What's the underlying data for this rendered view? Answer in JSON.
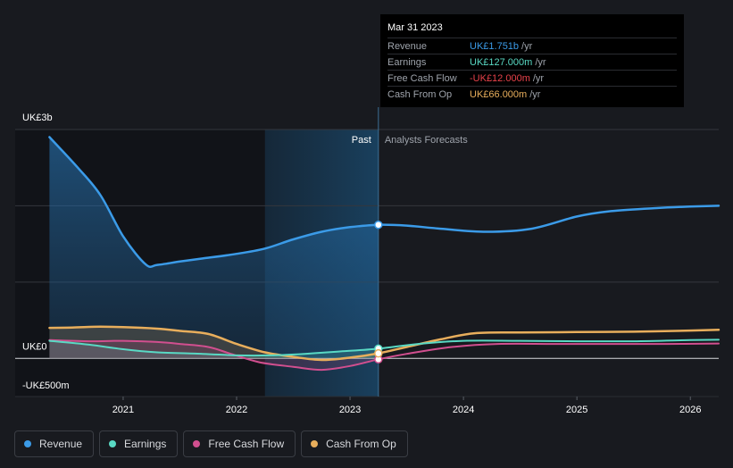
{
  "chart_data": {
    "type": "line",
    "x_domain": [
      2020.3,
      2026.25
    ],
    "y_domain": [
      -500,
      3000
    ],
    "y_tick_labels": [
      {
        "value": 3000,
        "label": "UK£3b"
      },
      {
        "value": 0,
        "label": "UK£0"
      },
      {
        "value": -500,
        "label": "-UK£500m"
      }
    ],
    "x_ticks": [
      {
        "value": 2021,
        "label": "2021"
      },
      {
        "value": 2022,
        "label": "2022"
      },
      {
        "value": 2023,
        "label": "2023"
      },
      {
        "value": 2024,
        "label": "2024"
      },
      {
        "value": 2025,
        "label": "2025"
      },
      {
        "value": 2026,
        "label": "2026"
      }
    ],
    "gridlines": [
      3000,
      2000,
      1000,
      0
    ],
    "past_label": "Past",
    "forecast_label": "Analysts Forecasts",
    "divider_x": 2023.25,
    "highlight_start_x": 2022.25,
    "series": [
      {
        "name": "Revenue",
        "color": "#3b9be8",
        "fill": true,
        "width": 2.5,
        "points": [
          [
            2020.35,
            2900
          ],
          [
            2020.6,
            2500
          ],
          [
            2020.8,
            2140
          ],
          [
            2021.0,
            1600
          ],
          [
            2021.2,
            1230
          ],
          [
            2021.3,
            1225
          ],
          [
            2021.5,
            1270
          ],
          [
            2021.7,
            1310
          ],
          [
            2022.0,
            1370
          ],
          [
            2022.25,
            1440
          ],
          [
            2022.5,
            1560
          ],
          [
            2022.75,
            1660
          ],
          [
            2023.0,
            1720
          ],
          [
            2023.25,
            1751
          ],
          [
            2023.5,
            1740
          ],
          [
            2023.8,
            1700
          ],
          [
            2024.2,
            1660
          ],
          [
            2024.6,
            1700
          ],
          [
            2025.0,
            1860
          ],
          [
            2025.3,
            1930
          ],
          [
            2025.7,
            1970
          ],
          [
            2026.0,
            1990
          ],
          [
            2026.25,
            2000
          ]
        ]
      },
      {
        "name": "Earnings",
        "color": "#59d9c4",
        "fill": false,
        "width": 2,
        "points": [
          [
            2020.35,
            230
          ],
          [
            2020.7,
            180
          ],
          [
            2021.0,
            120
          ],
          [
            2021.3,
            80
          ],
          [
            2021.7,
            60
          ],
          [
            2022.0,
            40
          ],
          [
            2022.3,
            40
          ],
          [
            2022.6,
            60
          ],
          [
            2022.9,
            90
          ],
          [
            2023.25,
            127
          ],
          [
            2023.6,
            190
          ],
          [
            2024.0,
            230
          ],
          [
            2024.5,
            230
          ],
          [
            2025.0,
            225
          ],
          [
            2025.5,
            225
          ],
          [
            2026.0,
            240
          ],
          [
            2026.25,
            245
          ]
        ]
      },
      {
        "name": "Free Cash Flow",
        "color": "#d14f8f",
        "fill": false,
        "width": 2,
        "points": [
          [
            2020.35,
            240
          ],
          [
            2020.7,
            225
          ],
          [
            2021.0,
            230
          ],
          [
            2021.3,
            215
          ],
          [
            2021.5,
            190
          ],
          [
            2021.75,
            150
          ],
          [
            2021.95,
            60
          ],
          [
            2022.2,
            -50
          ],
          [
            2022.5,
            -110
          ],
          [
            2022.75,
            -150
          ],
          [
            2023.0,
            -100
          ],
          [
            2023.25,
            -12
          ],
          [
            2023.5,
            60
          ],
          [
            2023.9,
            150
          ],
          [
            2024.3,
            190
          ],
          [
            2024.8,
            190
          ],
          [
            2025.3,
            190
          ],
          [
            2025.8,
            190
          ],
          [
            2026.25,
            195
          ]
        ]
      },
      {
        "name": "Cash From Op",
        "color": "#e8ae5c",
        "fill": false,
        "width": 2.5,
        "points": [
          [
            2020.35,
            400
          ],
          [
            2020.55,
            405
          ],
          [
            2020.8,
            415
          ],
          [
            2021.0,
            410
          ],
          [
            2021.3,
            390
          ],
          [
            2021.5,
            360
          ],
          [
            2021.75,
            320
          ],
          [
            2022.0,
            190
          ],
          [
            2022.25,
            80
          ],
          [
            2022.5,
            20
          ],
          [
            2022.75,
            -20
          ],
          [
            2023.0,
            10
          ],
          [
            2023.25,
            66
          ],
          [
            2023.5,
            150
          ],
          [
            2023.8,
            250
          ],
          [
            2024.1,
            330
          ],
          [
            2024.5,
            340
          ],
          [
            2025.0,
            345
          ],
          [
            2025.5,
            350
          ],
          [
            2026.0,
            365
          ],
          [
            2026.25,
            375
          ]
        ]
      }
    ]
  },
  "tooltip": {
    "date": "Mar 31 2023",
    "rows": [
      {
        "label": "Revenue",
        "value": "UK£1.751b",
        "unit": "/yr",
        "color": "#3b9be8"
      },
      {
        "label": "Earnings",
        "value": "UK£127.000m",
        "unit": "/yr",
        "color": "#59d9c4"
      },
      {
        "label": "Free Cash Flow",
        "value": "-UK£12.000m",
        "unit": "/yr",
        "color": "#e8424a"
      },
      {
        "label": "Cash From Op",
        "value": "UK£66.000m",
        "unit": "/yr",
        "color": "#e8ae5c"
      }
    ]
  },
  "legend": [
    {
      "label": "Revenue",
      "color": "#3b9be8"
    },
    {
      "label": "Earnings",
      "color": "#59d9c4"
    },
    {
      "label": "Free Cash Flow",
      "color": "#d14f8f"
    },
    {
      "label": "Cash From Op",
      "color": "#e8ae5c"
    }
  ]
}
